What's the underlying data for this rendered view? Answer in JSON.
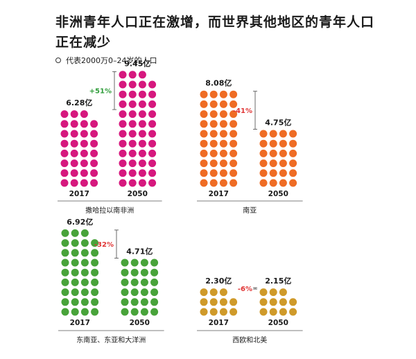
{
  "title": "非洲青年人口正在激增，而世界其他地区的青年人口正在减少",
  "legend": {
    "text": "代表2000万0–24岁的人口"
  },
  "colors": {
    "ssa": "#d6187e",
    "south_asia": "#ef6c24",
    "east_asia": "#48a33a",
    "west": "#cf9a2a",
    "increase": "#2f9d3a",
    "decrease": "#e03535"
  },
  "chart_data": [
    {
      "type": "bar",
      "region": "撒哈拉以南非洲",
      "categories": [
        "2017",
        "2050"
      ],
      "values": [
        6.28,
        9.45
      ],
      "value_labels": [
        "6.28亿",
        "9.45亿"
      ],
      "change_label": "+51%",
      "change_direction": "increase",
      "unit": "亿"
    },
    {
      "type": "bar",
      "region": "南亚",
      "categories": [
        "2017",
        "2050"
      ],
      "values": [
        8.08,
        4.75
      ],
      "value_labels": [
        "8.08亿",
        "4.75亿"
      ],
      "change_label": "-41%",
      "change_direction": "decrease",
      "unit": "亿"
    },
    {
      "type": "bar",
      "region": "东南亚、东亚和大洋洲",
      "categories": [
        "2017",
        "2050"
      ],
      "values": [
        6.92,
        4.71
      ],
      "value_labels": [
        "6.92亿",
        "4.71亿"
      ],
      "change_label": "-32%",
      "change_direction": "decrease",
      "unit": "亿"
    },
    {
      "type": "bar",
      "region": "西欧和北美",
      "categories": [
        "2017",
        "2050"
      ],
      "values": [
        2.3,
        2.15
      ],
      "value_labels": [
        "2.30亿",
        "2.15亿"
      ],
      "change_label": "-6%",
      "change_direction": "decrease",
      "unit": "亿"
    }
  ]
}
